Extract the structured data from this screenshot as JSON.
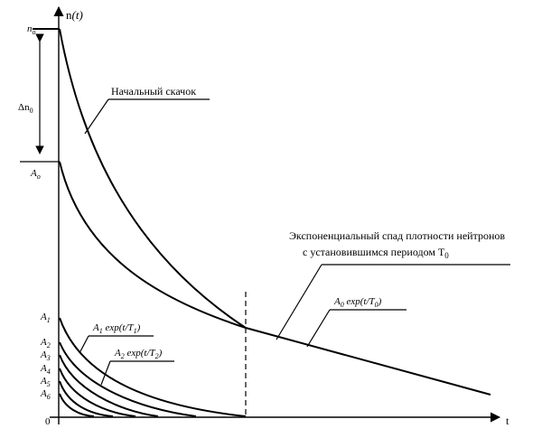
{
  "axes": {
    "y_label_main": "n",
    "y_label_arg": "(t)",
    "x_label": "t",
    "origin": "0"
  },
  "left_labels": {
    "n0": "n",
    "n0_sub": "o",
    "delta_n0": "Δn",
    "delta_n0_sub": "0",
    "A0": "A",
    "A0_sub": "o",
    "A1": "A",
    "A1_sub": "1",
    "A2": "A",
    "A2_sub": "2",
    "A3": "A",
    "A3_sub": "3",
    "A4": "A",
    "A4_sub": "4",
    "A5": "A",
    "A5_sub": "5",
    "A6": "A",
    "A6_sub": "6"
  },
  "annotations": {
    "initial_jump": "Начальный скачок",
    "exp_decay_line1": "Экспоненциальный спад плотности нейтронов",
    "exp_decay_line2_prefix": "с  установившимся периодом T",
    "exp_decay_line2_sub": "0",
    "term0_A": "A",
    "term0_A_sub": "0",
    "term0_rest": " exp(t/T",
    "term0_T_sub": "0",
    "term0_end": ")",
    "term1_A": "A",
    "term1_A_sub": "1",
    "term1_rest": " exp(t/T",
    "term1_T_sub": "1",
    "term1_end": ")",
    "term2_A": "A",
    "term2_A_sub": "2",
    "term2_rest": " exp(t/T",
    "term2_T_sub": "2",
    "term2_end": ")"
  }
}
